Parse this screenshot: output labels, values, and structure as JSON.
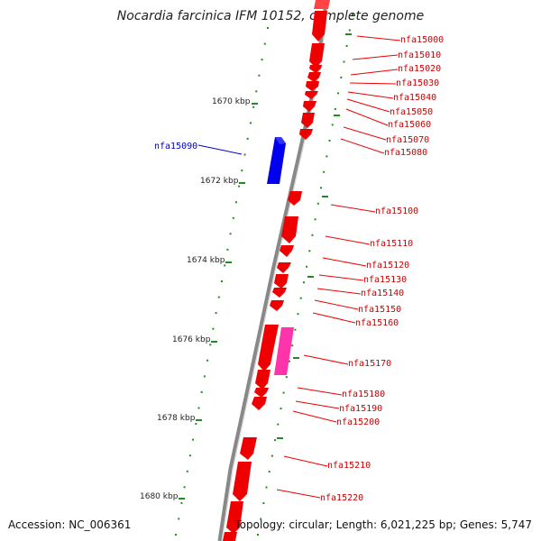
{
  "title": "Nocardia farcinica IFM 10152, complete genome",
  "footer": {
    "accession": "Accession: NC_006361",
    "topology": "Topology: circular",
    "length": "Length: 6,021,225 bp",
    "genes": "Genes: 5,747"
  },
  "colors": {
    "forward_gene": "#ff0000",
    "reverse_gene": "#0000ee",
    "pink_gene": "#ff33aa",
    "backbone": "#888888",
    "tick": "#228b22",
    "label_red": "#cc0000",
    "label_blue": "#0000cc"
  },
  "scale": [
    {
      "label": "1670 kbp"
    },
    {
      "label": "1672 kbp"
    },
    {
      "label": "1674 kbp"
    },
    {
      "label": "1676 kbp"
    },
    {
      "label": "1678 kbp"
    },
    {
      "label": "1680 kbp"
    }
  ],
  "gene_labels": [
    {
      "name": "nfa15000",
      "strand": "forward"
    },
    {
      "name": "nfa15010",
      "strand": "forward"
    },
    {
      "name": "nfa15020",
      "strand": "forward"
    },
    {
      "name": "nfa15030",
      "strand": "forward"
    },
    {
      "name": "nfa15040",
      "strand": "forward"
    },
    {
      "name": "nfa15050",
      "strand": "forward"
    },
    {
      "name": "nfa15060",
      "strand": "forward"
    },
    {
      "name": "nfa15070",
      "strand": "forward"
    },
    {
      "name": "nfa15080",
      "strand": "forward"
    },
    {
      "name": "nfa15090",
      "strand": "reverse"
    },
    {
      "name": "nfa15100",
      "strand": "forward"
    },
    {
      "name": "nfa15110",
      "strand": "forward"
    },
    {
      "name": "nfa15120",
      "strand": "forward"
    },
    {
      "name": "nfa15130",
      "strand": "forward"
    },
    {
      "name": "nfa15140",
      "strand": "forward"
    },
    {
      "name": "nfa15150",
      "strand": "forward"
    },
    {
      "name": "nfa15160",
      "strand": "forward"
    },
    {
      "name": "nfa15170",
      "strand": "forward"
    },
    {
      "name": "nfa15180",
      "strand": "forward"
    },
    {
      "name": "nfa15190",
      "strand": "forward"
    },
    {
      "name": "nfa15200",
      "strand": "forward"
    },
    {
      "name": "nfa15210",
      "strand": "forward"
    },
    {
      "name": "nfa15220",
      "strand": "forward"
    }
  ]
}
